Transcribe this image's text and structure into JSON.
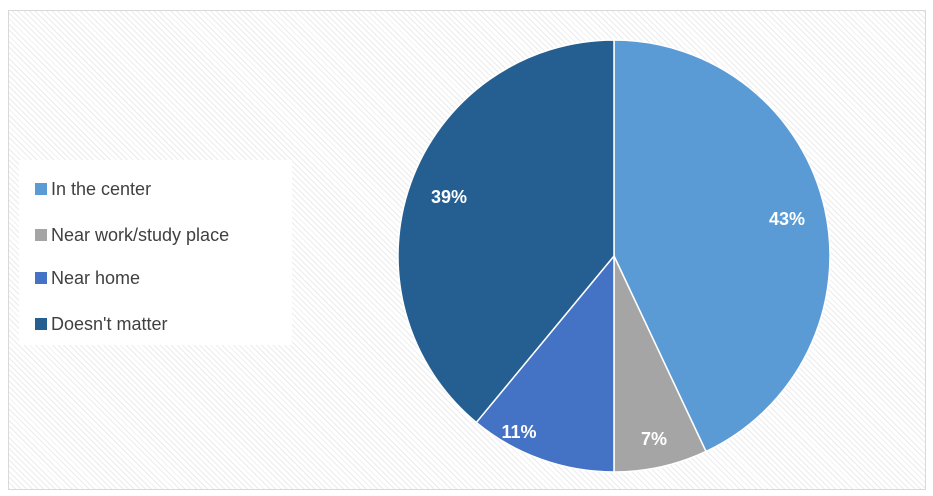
{
  "chart_data": {
    "type": "pie",
    "title": "",
    "legend_position": "left",
    "categories": [
      "In the center",
      "Near work/study place",
      "Near home",
      "Doesn't matter"
    ],
    "values": [
      43,
      7,
      11,
      39
    ],
    "labels": [
      "43%",
      "7%",
      "11%",
      "39%"
    ],
    "colors": [
      "#5B9BD5",
      "#A5A5A5",
      "#4472C4",
      "#255E91"
    ]
  }
}
